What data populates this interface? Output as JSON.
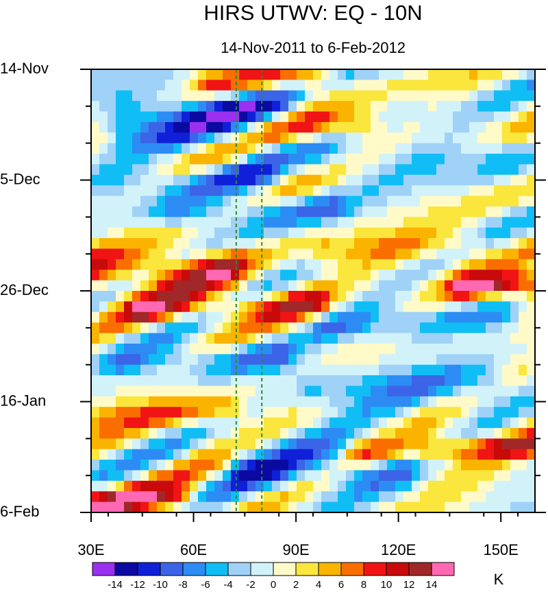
{
  "chart_data": {
    "type": "heatmap",
    "title": "HIRS UTWV: EQ - 10N",
    "subtitle": "14-Nov-2011 to 6-Feb-2012",
    "x_axis": {
      "range": [
        30,
        160
      ],
      "ticks": [
        30,
        60,
        90,
        120,
        150
      ],
      "tick_labels": [
        "30E",
        "60E",
        "90E",
        "120E",
        "150E"
      ]
    },
    "y_axis": {
      "range_days": [
        0,
        84
      ],
      "ticks": [
        0,
        21,
        42,
        63,
        84
      ],
      "tick_labels": [
        "14-Nov",
        "5-Dec",
        "26-Dec",
        "16-Jan",
        "6-Feb"
      ],
      "minor_step_days": 7
    },
    "reference_lines_lon": [
      72.5,
      80
    ],
    "colorbar": {
      "units": "K",
      "levels": [
        -14,
        -12,
        -10,
        -8,
        -6,
        -4,
        -2,
        0,
        2,
        4,
        6,
        8,
        10,
        12,
        14
      ],
      "level_labels": [
        "-14",
        "-12",
        "-10",
        "-8",
        "-6",
        "-4",
        "-2",
        "0",
        "2",
        "4",
        "6",
        "8",
        "10",
        "12",
        "14"
      ],
      "colors": [
        "#9a30f0",
        "#0a0aa0",
        "#1020d8",
        "#3c64e6",
        "#2c8cf4",
        "#10bef5",
        "#a0d2f8",
        "#d2f2fa",
        "#fffac8",
        "#fae63c",
        "#fab400",
        "#fa6e00",
        "#f01414",
        "#c80a0a",
        "#a02828",
        "#ff69b4"
      ]
    },
    "features": [
      {
        "kind": "band",
        "day": 9,
        "lon": [
          40,
          85
        ],
        "value": -9,
        "width": 5
      },
      {
        "kind": "band",
        "day": 11,
        "lon": [
          85,
          110
        ],
        "value": 7,
        "width": 3
      },
      {
        "kind": "band",
        "day": 2,
        "lon": [
          65,
          95
        ],
        "value": 7,
        "width": 2.5
      },
      {
        "kind": "band",
        "day": 21,
        "lon": [
          35,
          80
        ],
        "value": -5,
        "width": 3
      },
      {
        "kind": "band",
        "day": 27,
        "lon": [
          55,
          100
        ],
        "value": -6,
        "width": 3
      },
      {
        "kind": "band",
        "day": 38,
        "lon": [
          30,
          70
        ],
        "value": 9,
        "width": 4
      },
      {
        "kind": "band",
        "day": 45,
        "lon": [
          45,
          95
        ],
        "value": 8,
        "width": 3
      },
      {
        "kind": "band",
        "day": 41,
        "lon": [
          140,
          160
        ],
        "value": 13,
        "width": 2.5
      },
      {
        "kind": "band",
        "day": 34,
        "lon": [
          100,
          140
        ],
        "value": 5,
        "width": 3
      },
      {
        "kind": "band",
        "day": 55,
        "lon": [
          40,
          85
        ],
        "value": -6,
        "width": 3
      },
      {
        "kind": "band",
        "day": 65,
        "lon": [
          30,
          70
        ],
        "value": 6,
        "width": 3
      },
      {
        "kind": "band",
        "day": 72,
        "lon": [
          110,
          160
        ],
        "value": 9,
        "width": 2.5
      },
      {
        "kind": "band",
        "day": 75,
        "lon": [
          75,
          120
        ],
        "value": -7,
        "width": 5
      },
      {
        "kind": "band",
        "day": 82,
        "lon": [
          30,
          55
        ],
        "value": 10,
        "width": 3
      },
      {
        "kind": "band",
        "day": 60,
        "lon": [
          95,
          145
        ],
        "value": -6,
        "width": 4
      },
      {
        "kind": "band",
        "day": 48,
        "lon": [
          100,
          150
        ],
        "value": -5,
        "width": 3
      },
      {
        "kind": "band",
        "day": 17,
        "lon": [
          100,
          150
        ],
        "value": -4,
        "width": 4
      }
    ]
  }
}
